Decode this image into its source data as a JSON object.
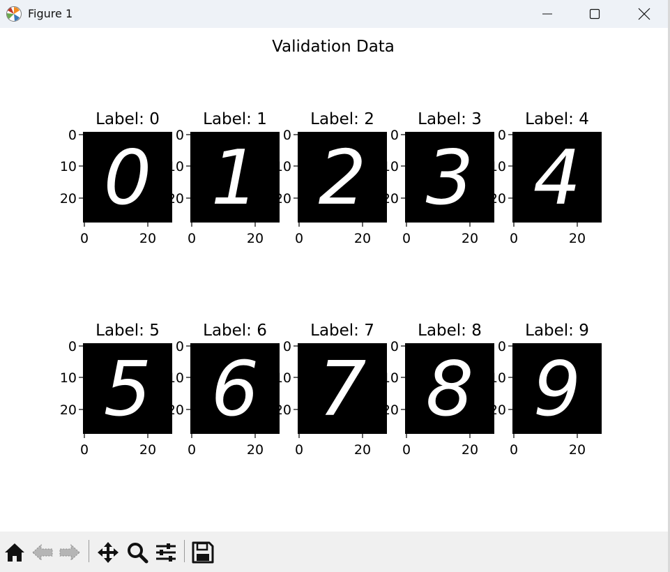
{
  "window": {
    "title": "Figure 1",
    "app_icon": "matplotlib-icon",
    "controls": [
      "minimize-icon",
      "maximize-icon",
      "close-icon"
    ]
  },
  "figure": {
    "suptitle": "Validation Data",
    "panels": [
      {
        "title": "Label: 0",
        "digit": "0"
      },
      {
        "title": "Label: 1",
        "digit": "1"
      },
      {
        "title": "Label: 2",
        "digit": "2"
      },
      {
        "title": "Label: 3",
        "digit": "3"
      },
      {
        "title": "Label: 4",
        "digit": "4"
      },
      {
        "title": "Label: 5",
        "digit": "5"
      },
      {
        "title": "Label: 6",
        "digit": "6"
      },
      {
        "title": "Label: 7",
        "digit": "7"
      },
      {
        "title": "Label: 8",
        "digit": "8"
      },
      {
        "title": "Label: 9",
        "digit": "9"
      }
    ],
    "x_ticks": [
      "0",
      "20"
    ],
    "y_ticks": [
      "0",
      "10",
      "20"
    ],
    "image_colormap": "gray",
    "colors": {
      "image_background": "#000000",
      "digit_stroke": "#ffffff",
      "text": "#000000"
    }
  },
  "toolbar": {
    "items": [
      "home-icon",
      "back-arrow-icon",
      "forward-arrow-icon",
      "pan-icon",
      "zoom-icon",
      "configure-subplots-icon",
      "save-icon"
    ]
  }
}
